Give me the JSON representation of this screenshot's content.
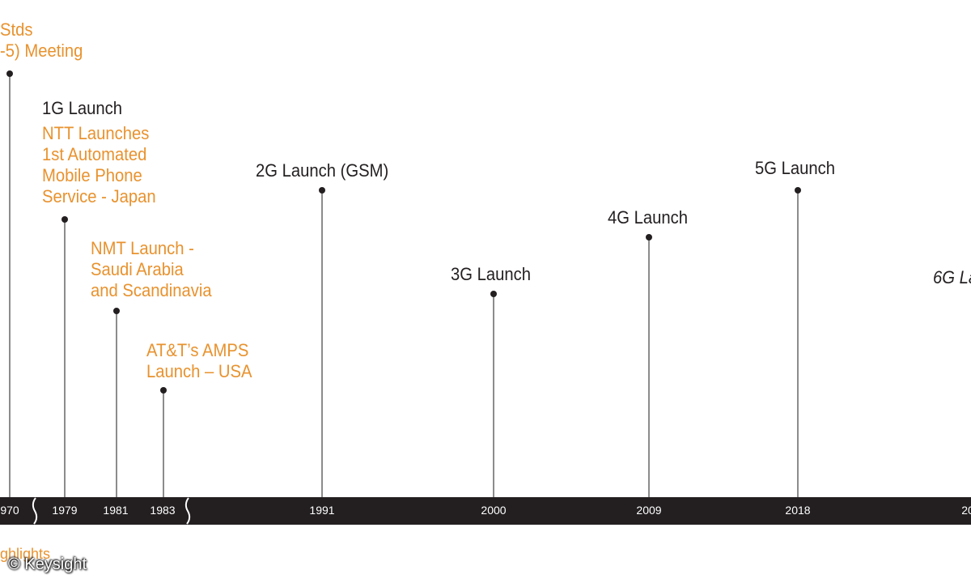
{
  "events": {
    "stds_line1": "Stds",
    "stds_line2": "-5) Meeting",
    "launch_1g": "1G Launch",
    "ntt_line1": "NTT Launches",
    "ntt_line2": "1st Automated",
    "ntt_line3": "Mobile Phone",
    "ntt_line4": "Service - Japan",
    "nmt_line1": "NMT Launch -",
    "nmt_line2": "Saudi Arabia",
    "nmt_line3": "and Scandinavia",
    "amps_line1": "AT&T’s AMPS",
    "amps_line2": "Launch – USA",
    "launch_2g": "2G Launch (GSM)",
    "launch_3g": "3G Launch",
    "launch_4g": "4G Launch",
    "launch_5g": "5G Launch",
    "launch_6g": "6G La"
  },
  "timeline": {
    "years": [
      "970",
      "1979",
      "1981",
      "1983",
      "1991",
      "2000",
      "2009",
      "2018",
      "20"
    ]
  },
  "footer": {
    "highlights": "ghlights",
    "credit": "© Keysight"
  },
  "colors": {
    "orange": "#e8922e",
    "dark": "#231f20"
  }
}
